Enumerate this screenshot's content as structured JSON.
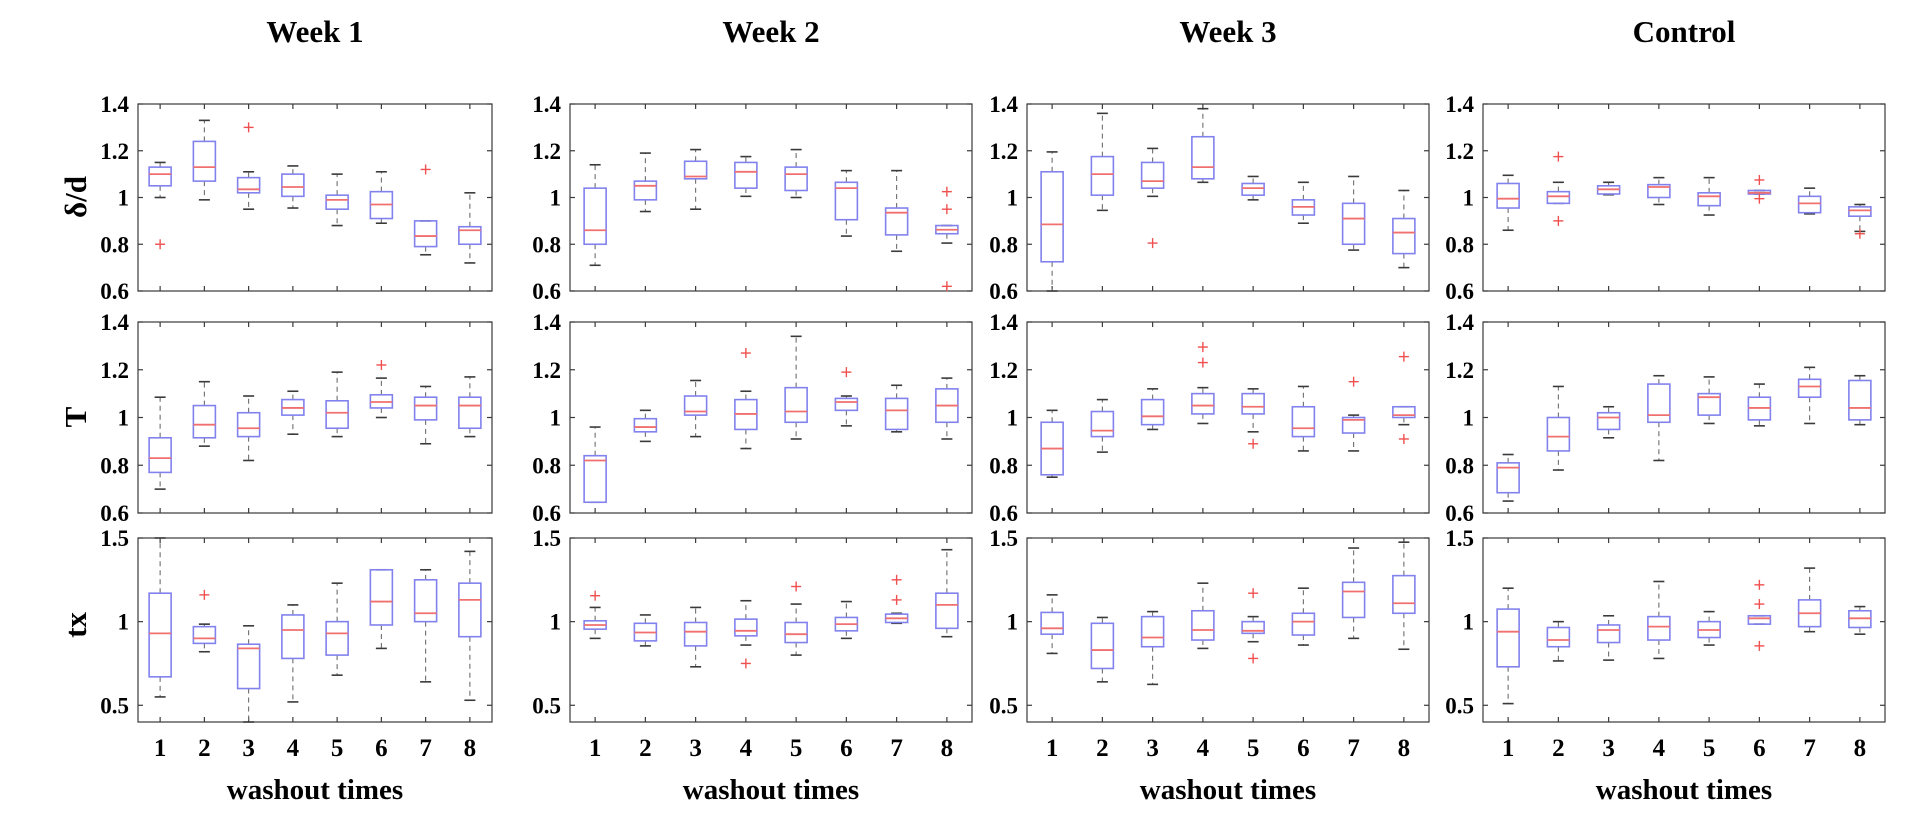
{
  "chart_data": {
    "type": "boxplot-grid",
    "columns": [
      "Week 1",
      "Week 2",
      "Week 3",
      "Control"
    ],
    "rows": [
      "δ/d",
      "T",
      "tx"
    ],
    "xlabel": "washout times",
    "x_categories": [
      "1",
      "2",
      "3",
      "4",
      "5",
      "6",
      "7",
      "8"
    ],
    "row_axes": [
      {
        "ylim": [
          0.6,
          1.4
        ],
        "yticks": [
          0.6,
          0.8,
          1.0,
          1.2,
          1.4
        ]
      },
      {
        "ylim": [
          0.6,
          1.4
        ],
        "yticks": [
          0.6,
          0.8,
          1.0,
          1.2,
          1.4
        ]
      },
      {
        "ylim": [
          0.4,
          1.5
        ],
        "yticks": [
          0.5,
          1.0,
          1.5
        ]
      }
    ],
    "colors": {
      "box": "#8282ee",
      "median": "#f07070",
      "whisker": "#6e6e6e",
      "cap": "#3a3a3a",
      "outlier": "#f05050",
      "axis": "#3a3a3a",
      "text": "#000000"
    },
    "box_format": [
      "whisker_low",
      "q1",
      "median",
      "q3",
      "whisker_high",
      "outliers"
    ],
    "subplots": [
      {
        "row": 0,
        "col": 0,
        "row_label": "δ/d",
        "col_label": "Week 1",
        "boxes": [
          [
            1.0,
            1.05,
            1.1,
            1.13,
            1.15,
            [
              0.8
            ]
          ],
          [
            0.99,
            1.07,
            1.13,
            1.24,
            1.33,
            []
          ],
          [
            0.95,
            1.02,
            1.035,
            1.085,
            1.11,
            [
              1.3
            ]
          ],
          [
            0.955,
            1.005,
            1.045,
            1.1,
            1.135,
            []
          ],
          [
            0.88,
            0.95,
            0.99,
            1.01,
            1.1,
            []
          ],
          [
            0.89,
            0.91,
            0.97,
            1.025,
            1.11,
            []
          ],
          [
            0.755,
            0.79,
            0.835,
            0.9,
            0.9,
            [
              1.12
            ]
          ],
          [
            0.72,
            0.8,
            0.86,
            0.875,
            1.02,
            []
          ]
        ]
      },
      {
        "row": 0,
        "col": 1,
        "row_label": "δ/d",
        "col_label": "Week 2",
        "boxes": [
          [
            0.71,
            0.8,
            0.86,
            1.04,
            1.14,
            []
          ],
          [
            0.94,
            0.99,
            1.05,
            1.07,
            1.19,
            []
          ],
          [
            0.95,
            1.08,
            1.09,
            1.155,
            1.205,
            []
          ],
          [
            1.005,
            1.04,
            1.11,
            1.15,
            1.175,
            []
          ],
          [
            1.0,
            1.03,
            1.1,
            1.13,
            1.205,
            []
          ],
          [
            0.835,
            0.905,
            1.04,
            1.065,
            1.115,
            []
          ],
          [
            0.77,
            0.84,
            0.935,
            0.955,
            1.115,
            []
          ],
          [
            0.805,
            0.845,
            0.862,
            0.88,
            0.88,
            [
              1.025,
              0.95,
              0.62
            ]
          ]
        ]
      },
      {
        "row": 0,
        "col": 2,
        "row_label": "δ/d",
        "col_label": "Week 3",
        "boxes": [
          [
            0.6,
            0.725,
            0.885,
            1.11,
            1.195,
            []
          ],
          [
            0.945,
            1.01,
            1.1,
            1.175,
            1.36,
            []
          ],
          [
            1.005,
            1.04,
            1.07,
            1.15,
            1.21,
            [
              0.805
            ]
          ],
          [
            1.065,
            1.08,
            1.13,
            1.26,
            1.38,
            []
          ],
          [
            0.99,
            1.01,
            1.04,
            1.06,
            1.09,
            []
          ],
          [
            0.89,
            0.925,
            0.96,
            0.99,
            1.065,
            []
          ],
          [
            0.775,
            0.8,
            0.91,
            0.975,
            1.09,
            []
          ],
          [
            0.7,
            0.76,
            0.85,
            0.91,
            1.03,
            []
          ]
        ]
      },
      {
        "row": 0,
        "col": 3,
        "row_label": "δ/d",
        "col_label": "Control",
        "boxes": [
          [
            0.86,
            0.955,
            0.995,
            1.06,
            1.095,
            []
          ],
          [
            0.975,
            0.975,
            1.005,
            1.025,
            1.065,
            [
              1.175,
              0.9
            ]
          ],
          [
            1.012,
            1.015,
            1.035,
            1.05,
            1.065,
            []
          ],
          [
            0.97,
            1.0,
            1.045,
            1.055,
            1.085,
            []
          ],
          [
            0.925,
            0.965,
            1.005,
            1.02,
            1.085,
            []
          ],
          [
            1.015,
            1.015,
            1.02,
            1.03,
            1.03,
            [
              1.075,
              0.995
            ]
          ],
          [
            0.93,
            0.935,
            0.975,
            1.005,
            1.04,
            []
          ],
          [
            0.855,
            0.92,
            0.945,
            0.96,
            0.97,
            [
              0.845
            ]
          ]
        ]
      },
      {
        "row": 1,
        "col": 0,
        "row_label": "T",
        "col_label": "Week 1",
        "boxes": [
          [
            0.7,
            0.77,
            0.83,
            0.915,
            1.085,
            []
          ],
          [
            0.88,
            0.915,
            0.97,
            1.05,
            1.15,
            []
          ],
          [
            0.82,
            0.92,
            0.955,
            1.02,
            1.09,
            []
          ],
          [
            0.93,
            1.01,
            1.04,
            1.075,
            1.11,
            []
          ],
          [
            0.92,
            0.955,
            1.02,
            1.07,
            1.19,
            []
          ],
          [
            1.0,
            1.04,
            1.065,
            1.095,
            1.165,
            [
              1.22
            ]
          ],
          [
            0.89,
            0.99,
            1.05,
            1.085,
            1.13,
            []
          ],
          [
            0.92,
            0.955,
            1.05,
            1.085,
            1.17,
            []
          ]
        ]
      },
      {
        "row": 1,
        "col": 1,
        "row_label": "T",
        "col_label": "Week 2",
        "boxes": [
          [
            0.645,
            0.645,
            0.82,
            0.84,
            0.96,
            []
          ],
          [
            0.9,
            0.94,
            0.96,
            0.995,
            1.03,
            []
          ],
          [
            0.92,
            1.01,
            1.025,
            1.09,
            1.155,
            []
          ],
          [
            0.87,
            0.95,
            1.015,
            1.075,
            1.11,
            [
              1.27
            ]
          ],
          [
            0.91,
            0.98,
            1.025,
            1.125,
            1.34,
            []
          ],
          [
            0.965,
            1.03,
            1.065,
            1.08,
            1.09,
            [
              1.19
            ]
          ],
          [
            0.94,
            0.95,
            1.03,
            1.08,
            1.135,
            []
          ],
          [
            0.91,
            0.98,
            1.05,
            1.12,
            1.165,
            []
          ]
        ]
      },
      {
        "row": 1,
        "col": 2,
        "row_label": "T",
        "col_label": "Week 3",
        "boxes": [
          [
            0.75,
            0.76,
            0.87,
            0.98,
            1.03,
            []
          ],
          [
            0.855,
            0.92,
            0.945,
            1.025,
            1.075,
            []
          ],
          [
            0.95,
            0.97,
            1.005,
            1.075,
            1.12,
            []
          ],
          [
            0.975,
            1.015,
            1.05,
            1.1,
            1.125,
            [
              1.295,
              1.23
            ]
          ],
          [
            0.94,
            1.015,
            1.045,
            1.1,
            1.12,
            [
              0.89
            ]
          ],
          [
            0.86,
            0.92,
            0.955,
            1.045,
            1.13,
            []
          ],
          [
            0.86,
            0.935,
            0.99,
            1.0,
            1.01,
            [
              1.15
            ]
          ],
          [
            0.97,
            1.0,
            1.01,
            1.045,
            1.045,
            [
              1.255,
              0.91
            ]
          ]
        ]
      },
      {
        "row": 1,
        "col": 3,
        "row_label": "T",
        "col_label": "Control",
        "boxes": [
          [
            0.65,
            0.685,
            0.79,
            0.81,
            0.845,
            []
          ],
          [
            0.78,
            0.86,
            0.92,
            1.0,
            1.13,
            []
          ],
          [
            0.915,
            0.95,
            1.0,
            1.02,
            1.045,
            []
          ],
          [
            0.82,
            0.98,
            1.01,
            1.14,
            1.175,
            []
          ],
          [
            0.975,
            1.01,
            1.085,
            1.1,
            1.17,
            []
          ],
          [
            0.965,
            0.99,
            1.04,
            1.085,
            1.14,
            []
          ],
          [
            0.975,
            1.085,
            1.13,
            1.16,
            1.21,
            []
          ],
          [
            0.97,
            0.99,
            1.04,
            1.155,
            1.175,
            []
          ]
        ]
      },
      {
        "row": 2,
        "col": 0,
        "row_label": "tx",
        "col_label": "Week 1",
        "boxes": [
          [
            0.55,
            0.67,
            0.93,
            1.17,
            1.5,
            []
          ],
          [
            0.82,
            0.87,
            0.9,
            0.97,
            0.985,
            [
              1.16
            ]
          ],
          [
            0.4,
            0.6,
            0.84,
            0.865,
            0.975,
            []
          ],
          [
            0.52,
            0.78,
            0.95,
            1.04,
            1.1,
            []
          ],
          [
            0.68,
            0.8,
            0.93,
            1.0,
            1.23,
            []
          ],
          [
            0.84,
            0.98,
            1.12,
            1.31,
            1.31,
            []
          ],
          [
            0.64,
            1.0,
            1.05,
            1.25,
            1.31,
            []
          ],
          [
            0.53,
            0.91,
            1.13,
            1.23,
            1.42,
            []
          ]
        ]
      },
      {
        "row": 2,
        "col": 1,
        "row_label": "tx",
        "col_label": "Week 2",
        "boxes": [
          [
            0.9,
            0.955,
            0.98,
            1.005,
            1.085,
            [
              1.155
            ]
          ],
          [
            0.855,
            0.885,
            0.935,
            0.99,
            1.04,
            []
          ],
          [
            0.73,
            0.855,
            0.94,
            0.995,
            1.085,
            []
          ],
          [
            0.86,
            0.915,
            0.945,
            1.015,
            1.125,
            [
              0.75
            ]
          ],
          [
            0.8,
            0.875,
            0.925,
            0.995,
            1.105,
            [
              1.21
            ]
          ],
          [
            0.9,
            0.945,
            0.985,
            1.025,
            1.12,
            []
          ],
          [
            0.99,
            0.995,
            1.02,
            1.045,
            1.05,
            [
              1.25,
              1.13
            ]
          ],
          [
            0.91,
            0.96,
            1.1,
            1.17,
            1.43,
            []
          ]
        ]
      },
      {
        "row": 2,
        "col": 2,
        "row_label": "tx",
        "col_label": "Week 3",
        "boxes": [
          [
            0.81,
            0.925,
            0.96,
            1.055,
            1.16,
            []
          ],
          [
            0.64,
            0.72,
            0.83,
            0.99,
            1.025,
            []
          ],
          [
            0.625,
            0.85,
            0.905,
            1.03,
            1.06,
            []
          ],
          [
            0.84,
            0.89,
            0.95,
            1.065,
            1.23,
            []
          ],
          [
            0.88,
            0.93,
            0.945,
            1.0,
            1.03,
            [
              1.17,
              0.78
            ]
          ],
          [
            0.86,
            0.92,
            1.0,
            1.05,
            1.2,
            []
          ],
          [
            0.9,
            1.025,
            1.18,
            1.235,
            1.44,
            []
          ],
          [
            0.835,
            1.05,
            1.11,
            1.275,
            1.475,
            []
          ]
        ]
      },
      {
        "row": 2,
        "col": 3,
        "row_label": "tx",
        "col_label": "Control",
        "boxes": [
          [
            0.51,
            0.73,
            0.94,
            1.075,
            1.2,
            []
          ],
          [
            0.765,
            0.85,
            0.89,
            0.965,
            1.0,
            []
          ],
          [
            0.77,
            0.875,
            0.95,
            0.98,
            1.035,
            []
          ],
          [
            0.78,
            0.89,
            0.97,
            1.03,
            1.24,
            []
          ],
          [
            0.86,
            0.905,
            0.95,
            1.0,
            1.06,
            []
          ],
          [
            0.985,
            0.985,
            1.02,
            1.035,
            1.035,
            [
              1.22,
              1.105,
              0.855
            ]
          ],
          [
            0.94,
            0.97,
            1.05,
            1.13,
            1.32,
            []
          ],
          [
            0.925,
            0.965,
            1.02,
            1.065,
            1.09,
            []
          ]
        ]
      }
    ]
  }
}
